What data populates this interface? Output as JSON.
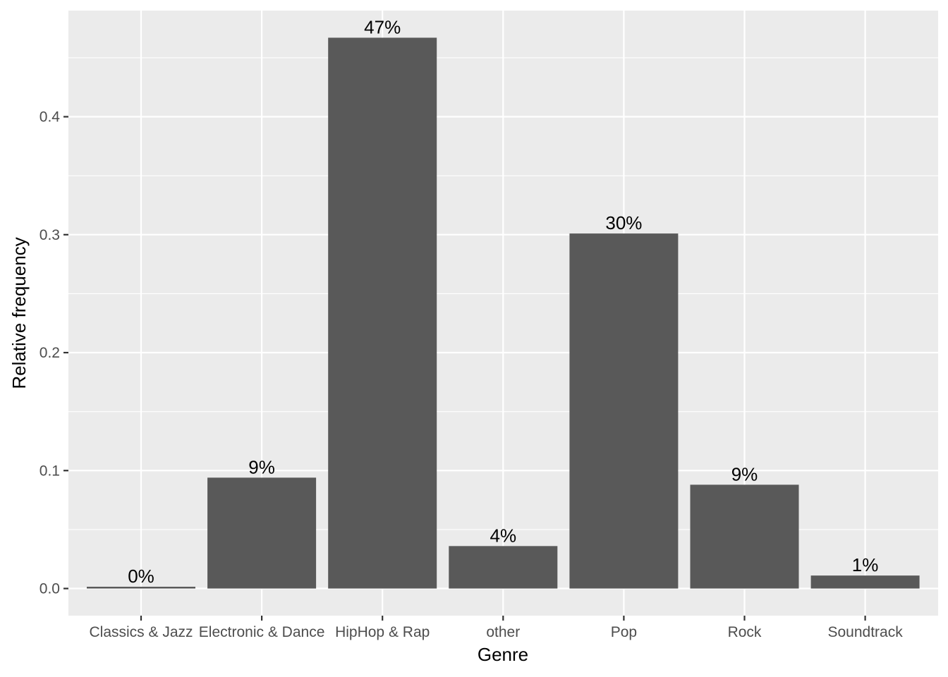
{
  "chart_data": {
    "type": "bar",
    "title": "",
    "xlabel": "Genre",
    "ylabel": "Relative frequency",
    "categories": [
      "Classics & Jazz",
      "Electronic & Dance",
      "HipHop & Rap",
      "other",
      "Pop",
      "Rock",
      "Soundtrack"
    ],
    "values": [
      0.0015,
      0.094,
      0.467,
      0.036,
      0.301,
      0.088,
      0.011
    ],
    "data_labels": [
      "0%",
      "9%",
      "47%",
      "4%",
      "30%",
      "9%",
      "1%"
    ],
    "yticks": [
      0.0,
      0.1,
      0.2,
      0.3,
      0.4
    ],
    "ytick_labels": [
      "0.0",
      "0.1",
      "0.2",
      "0.3",
      "0.4"
    ],
    "ylim": [
      -0.023,
      0.49
    ],
    "grid": true,
    "legend": "none"
  },
  "colors": {
    "panel_background": "#ebebeb",
    "grid_line": "#ffffff",
    "bar_fill": "#595959",
    "tick": "#333333",
    "tick_text": "#4d4d4d",
    "text": "#000000"
  }
}
